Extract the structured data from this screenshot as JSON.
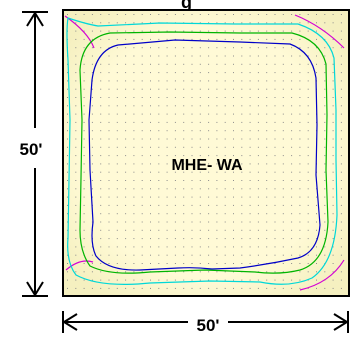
{
  "diagram": {
    "title_fragment": "g",
    "zone_label": "MHE- WA",
    "height_dimension": "50'",
    "width_dimension": "50'"
  },
  "contours": [
    {
      "name": "outer",
      "color": "#d400d4"
    },
    {
      "name": "second",
      "color": "#00d8d8"
    },
    {
      "name": "third",
      "color": "#00b400"
    },
    {
      "name": "inner",
      "color": "#0000c8"
    }
  ],
  "colors": {
    "floor_fill": "#fffad6",
    "floor_edge": "#f5f0c0",
    "grid_dot": "#8c8c8c",
    "border": "#000000"
  }
}
